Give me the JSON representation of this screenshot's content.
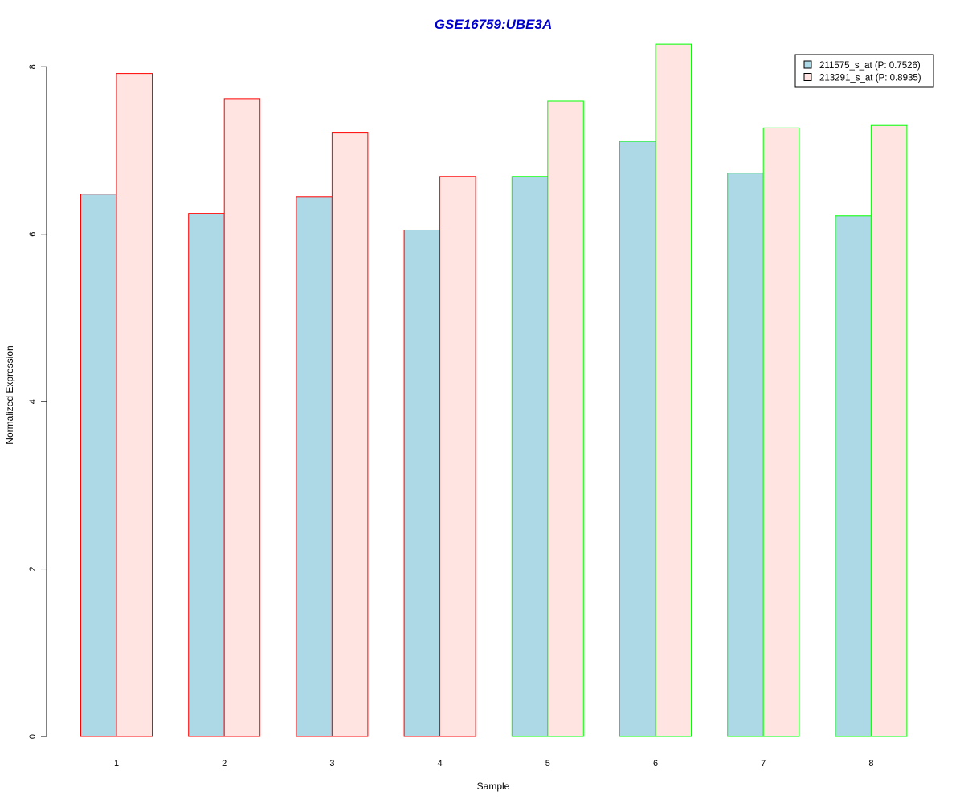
{
  "chart_data": {
    "type": "bar",
    "title": "GSE16759:UBE3A",
    "xlabel": "Sample",
    "ylabel": "Normalized Expression",
    "categories": [
      "1",
      "2",
      "3",
      "4",
      "5",
      "6",
      "7",
      "8"
    ],
    "ylim": [
      0,
      8.3
    ],
    "yticks": [
      "0",
      "2",
      "4",
      "6",
      "8"
    ],
    "grid": false,
    "legend_position": "top-right",
    "series": [
      {
        "name": "211575_s_at (P: 0.7526)",
        "fill": "#add8e6",
        "values": [
          6.48,
          6.25,
          6.45,
          6.05,
          6.69,
          7.11,
          6.73,
          6.22
        ]
      },
      {
        "name": "213291_s_at (P: 0.8935)",
        "fill": "#ffe4e1",
        "values": [
          7.92,
          7.62,
          7.21,
          6.69,
          7.59,
          8.27,
          7.27,
          7.3
        ]
      }
    ],
    "group_outline_colors": [
      "#ff0000",
      "#ff0000",
      "#ff0000",
      "#ff0000",
      "#00ff00",
      "#00ff00",
      "#00ff00",
      "#00ff00"
    ]
  },
  "colors": {
    "title": "#0000cd",
    "axis": "#000000"
  }
}
